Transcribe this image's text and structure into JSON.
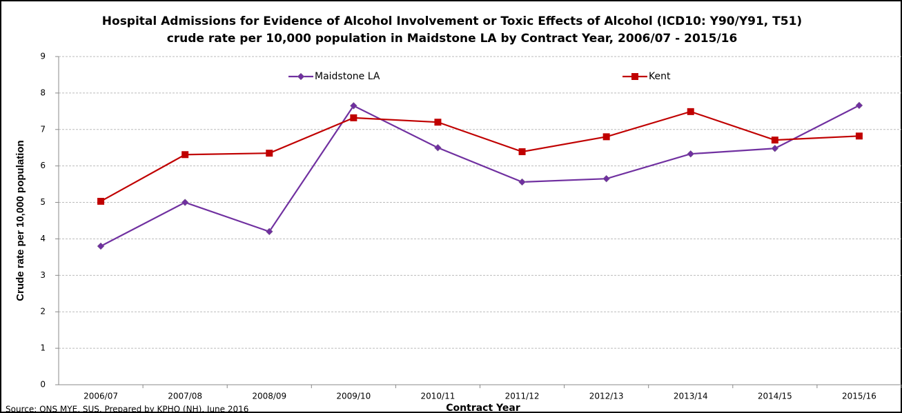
{
  "chart_data": {
    "type": "line",
    "title": "Hospital Admissions for Evidence of Alcohol Involvement or Toxic Effects of Alcohol (ICD10: Y90/Y91, T51)",
    "subtitle": "crude rate per 10,000 population in Maidstone LA by Contract Year, 2006/07 - 2015/16",
    "x_label": "Contract Year",
    "y_label": "Crude rate per 10,000 population",
    "source": "Source: ONS MYE, SUS. Prepared by KPHO (NH), June 2016",
    "categories": [
      "2006/07",
      "2007/08",
      "2008/09",
      "2009/10",
      "2010/11",
      "2011/12",
      "2012/13",
      "2013/14",
      "2014/15",
      "2015/16"
    ],
    "series": [
      {
        "name": "Maidstone LA",
        "color": "#7030a0",
        "marker": "diamond",
        "values": [
          3.8,
          5.0,
          4.2,
          7.65,
          6.5,
          5.56,
          5.65,
          6.33,
          6.48,
          7.66
        ]
      },
      {
        "name": "Kent",
        "color": "#c00000",
        "marker": "square",
        "values": [
          5.03,
          6.31,
          6.35,
          7.32,
          7.2,
          6.39,
          6.8,
          7.49,
          6.71,
          6.82
        ]
      }
    ],
    "ylim": [
      0,
      9
    ],
    "yticks": [
      0,
      1,
      2,
      3,
      4,
      5,
      6,
      7,
      8,
      9
    ],
    "grid": true,
    "legend": "top"
  }
}
